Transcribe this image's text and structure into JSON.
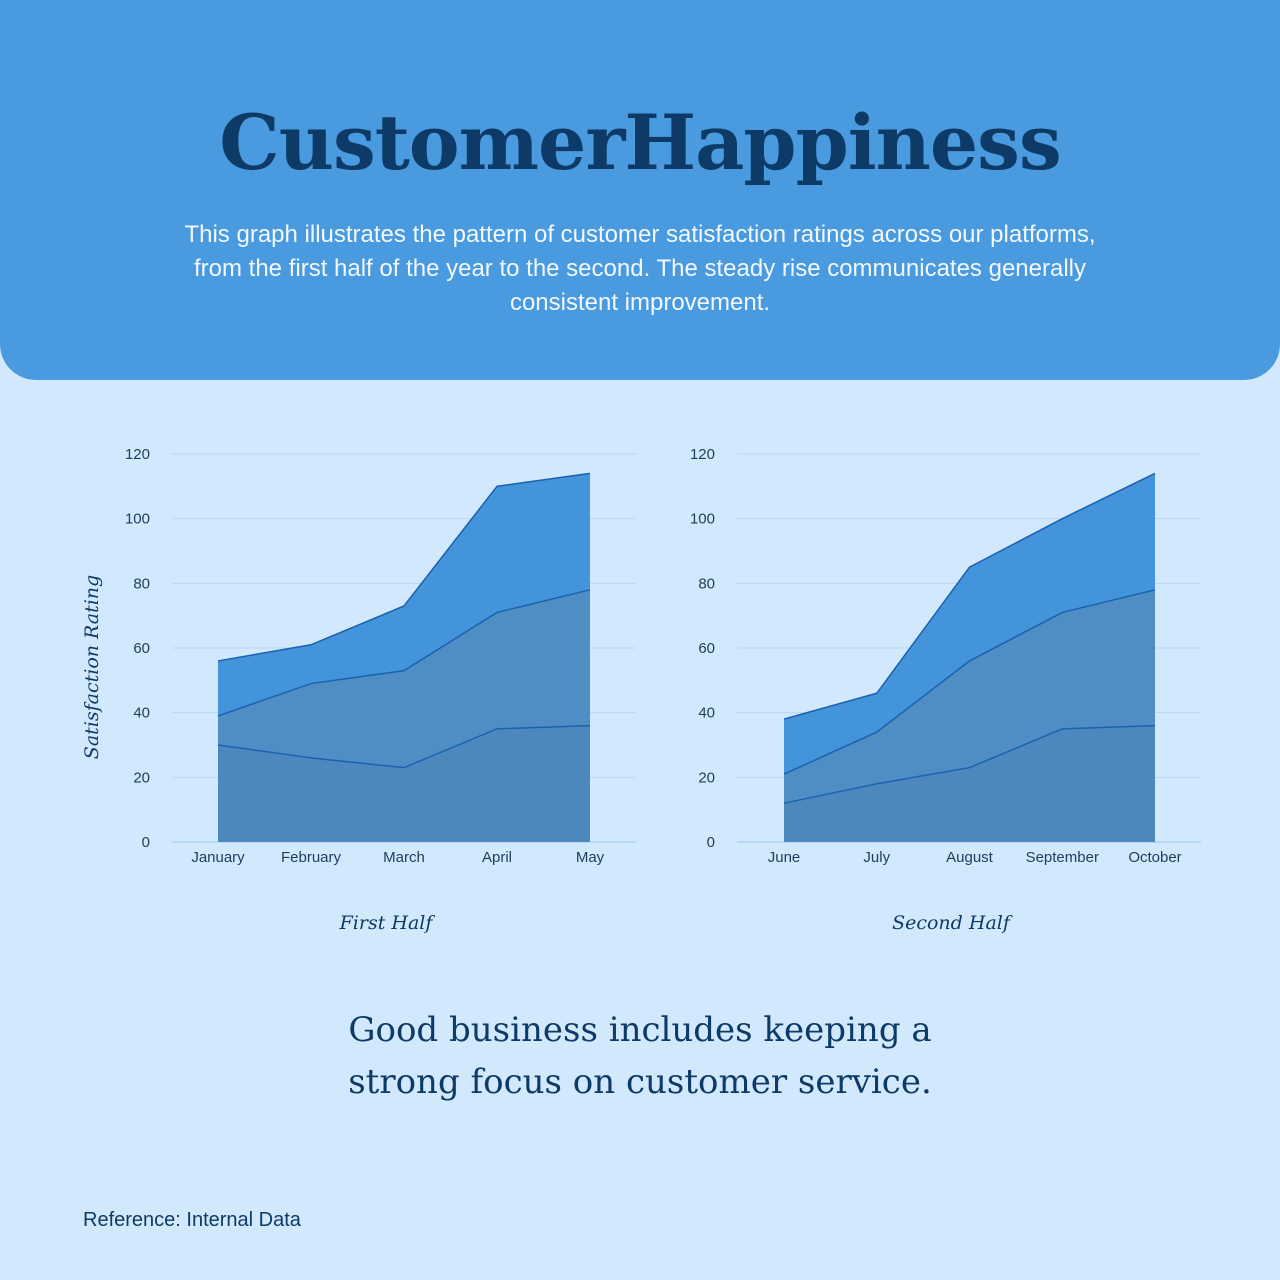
{
  "header": {
    "title": "CustomerHappiness",
    "description": "This graph illustrates the pattern of customer satisfaction ratings across our platforms, from the first half of the year to the second. The steady rise communicates generally consistent improvement."
  },
  "colors": {
    "header_bg": "#4a9ae0",
    "page_bg": "#d2e8fd",
    "top_fill": "#4494dc",
    "mid_fill": "#4f8ec4",
    "bottom_fill": "#4c88be",
    "line": "#1a62ad"
  },
  "chart_data": [
    {
      "type": "area",
      "title": "First Half",
      "ylabel": "Satisfaction Rating",
      "categories": [
        "January",
        "February",
        "March",
        "April",
        "May"
      ],
      "ylim": [
        0,
        120
      ],
      "yticks": [
        0,
        20,
        40,
        60,
        80,
        100,
        120
      ],
      "grid": true,
      "series": [
        {
          "values": [
            56,
            61,
            73,
            110,
            114
          ]
        },
        {
          "values": [
            39,
            49,
            53,
            71,
            78
          ]
        },
        {
          "values": [
            30,
            26,
            23,
            35,
            36
          ]
        }
      ]
    },
    {
      "type": "area",
      "title": "Second Half",
      "ylabel": "",
      "categories": [
        "June",
        "July",
        "August",
        "September",
        "October"
      ],
      "ylim": [
        0,
        120
      ],
      "yticks": [
        0,
        20,
        40,
        60,
        80,
        100,
        120
      ],
      "grid": true,
      "series": [
        {
          "values": [
            38,
            46,
            85,
            100,
            114
          ]
        },
        {
          "values": [
            21,
            34,
            56,
            71,
            78
          ]
        },
        {
          "values": [
            12,
            18,
            23,
            35,
            36
          ]
        }
      ]
    }
  ],
  "footer": {
    "quote": "Good business includes keeping a strong focus on customer service.",
    "reference": "Reference: Internal Data"
  }
}
